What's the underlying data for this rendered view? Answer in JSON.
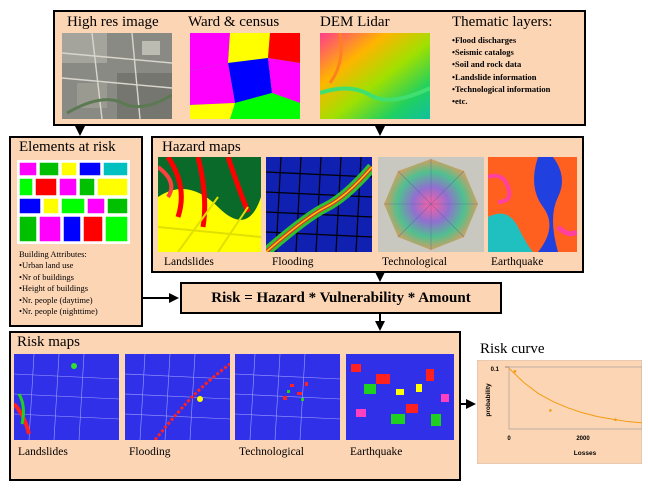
{
  "top_panel": {
    "titles": [
      "High res image",
      "Ward & census",
      "DEM Lidar",
      "Thematic layers:"
    ],
    "thematic_items": [
      "Flood discharges",
      "Seismic catalogs",
      "Soil and rock data",
      "Landslide information",
      "Technological information",
      "etc."
    ]
  },
  "elements_panel": {
    "title": "Elements at risk",
    "attributes_heading": "Building Attributes:",
    "attributes": [
      "Urban land use",
      "Nr of buildings",
      "Height of buildings",
      "Nr. people (daytime)",
      "Nr. people (nighttime)"
    ]
  },
  "hazard_panel": {
    "title": "Hazard maps",
    "labels": [
      "Landslides",
      "Flooding",
      "Technological",
      "Earthquake"
    ]
  },
  "formula": "Risk = Hazard * Vulnerability * Amount",
  "risk_panel": {
    "title": "Risk maps",
    "labels": [
      "Landslides",
      "Flooding",
      "Technological",
      "Earthquake"
    ]
  },
  "chart_data": {
    "type": "scatter",
    "title": "Risk curve",
    "xlabel": "Losses",
    "ylabel": "probability",
    "x_ticks": [
      "0",
      "2000"
    ],
    "y_ticks": [
      "0.1"
    ],
    "xlim": [
      0,
      4500
    ],
    "ylim": [
      0,
      0.1
    ],
    "series": [
      {
        "x": [
          0,
          500,
          1000,
          1500,
          2000,
          2500,
          3000,
          3500,
          4000,
          4500
        ],
        "y": [
          0.098,
          0.075,
          0.057,
          0.044,
          0.034,
          0.026,
          0.02,
          0.016,
          0.012,
          0.01
        ]
      }
    ],
    "points": {
      "x": [
        200,
        1400,
        3600
      ],
      "y": [
        0.093,
        0.03,
        0.015
      ]
    },
    "colors": {
      "curve": "#f39c12",
      "points": "#f39c12",
      "background": "#fcd5b5"
    }
  }
}
